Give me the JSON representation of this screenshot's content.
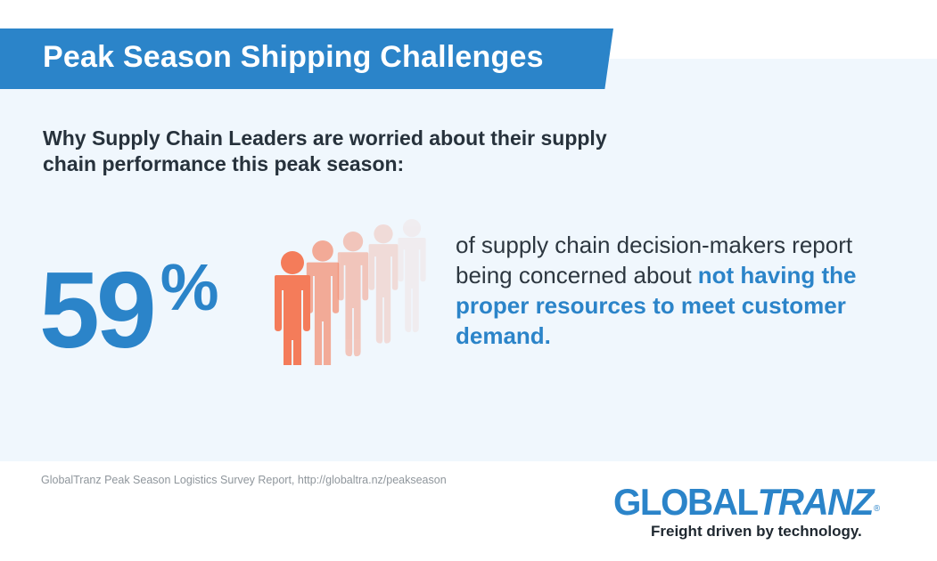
{
  "header": {
    "title": "Peak Season Shipping Challenges"
  },
  "subtitle": "Why Supply Chain Leaders are worried about their supply chain performance this peak season:",
  "stat": {
    "value": "59",
    "unit": "%",
    "text_plain": "of supply chain decision-makers report being concerned about ",
    "text_highlight": "not having the proper resources to meet customer demand."
  },
  "people_icon": {
    "icon": "person-icon",
    "count": 5,
    "color": "#f47c5a"
  },
  "footer": {
    "source": "GlobalTranz Peak Season Logistics Survey Report, http://globaltra.nz/peakseason",
    "logo": {
      "part1": "GLOBAL",
      "part2": "TRANZ",
      "registered": "®"
    },
    "tagline": "Freight driven by technology."
  },
  "colors": {
    "brand_blue": "#2b84c9",
    "panel_bg": "#f0f7fd",
    "accent_orange": "#f47c5a",
    "text_dark": "#27323c"
  }
}
